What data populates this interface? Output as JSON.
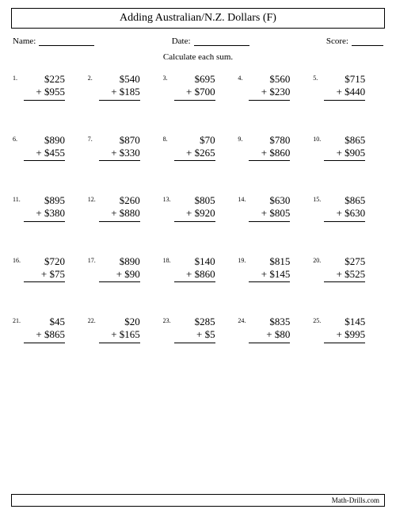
{
  "title": "Adding Australian/N.Z. Dollars (F)",
  "meta": {
    "name_label": "Name:",
    "date_label": "Date:",
    "score_label": "Score:"
  },
  "instruction": "Calculate each sum.",
  "currency": "$",
  "problems": [
    {
      "n": "1.",
      "a": "225",
      "b": "955"
    },
    {
      "n": "2.",
      "a": "540",
      "b": "185"
    },
    {
      "n": "3.",
      "a": "695",
      "b": "700"
    },
    {
      "n": "4.",
      "a": "560",
      "b": "230"
    },
    {
      "n": "5.",
      "a": "715",
      "b": "440"
    },
    {
      "n": "6.",
      "a": "890",
      "b": "455"
    },
    {
      "n": "7.",
      "a": "870",
      "b": "330"
    },
    {
      "n": "8.",
      "a": "70",
      "b": "265"
    },
    {
      "n": "9.",
      "a": "780",
      "b": "860"
    },
    {
      "n": "10.",
      "a": "865",
      "b": "905"
    },
    {
      "n": "11.",
      "a": "895",
      "b": "380"
    },
    {
      "n": "12.",
      "a": "260",
      "b": "880"
    },
    {
      "n": "13.",
      "a": "805",
      "b": "920"
    },
    {
      "n": "14.",
      "a": "630",
      "b": "805"
    },
    {
      "n": "15.",
      "a": "865",
      "b": "630"
    },
    {
      "n": "16.",
      "a": "720",
      "b": "75"
    },
    {
      "n": "17.",
      "a": "890",
      "b": "90"
    },
    {
      "n": "18.",
      "a": "140",
      "b": "860"
    },
    {
      "n": "19.",
      "a": "815",
      "b": "145"
    },
    {
      "n": "20.",
      "a": "275",
      "b": "525"
    },
    {
      "n": "21.",
      "a": "45",
      "b": "865"
    },
    {
      "n": "22.",
      "a": "20",
      "b": "165"
    },
    {
      "n": "23.",
      "a": "285",
      "b": "5"
    },
    {
      "n": "24.",
      "a": "835",
      "b": "80"
    },
    {
      "n": "25.",
      "a": "145",
      "b": "995"
    }
  ],
  "footer": "Math-Drills.com",
  "style": {
    "page_bg": "#ffffff",
    "text_color": "#000000",
    "border_color": "#000000",
    "title_fontsize": 14,
    "meta_fontsize": 11,
    "instruction_fontsize": 11,
    "problem_fontsize": 13,
    "pnum_fontsize": 8,
    "footer_fontsize": 9,
    "grid_cols": 5,
    "grid_rows": 5
  }
}
